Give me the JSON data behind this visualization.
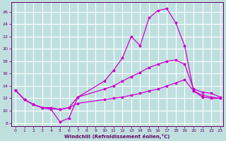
{
  "xlabel": "Windchill (Refroidissement éolien,°C)",
  "bg_color": "#c0e0e0",
  "grid_color": "#ffffff",
  "line_color": "#cc00cc",
  "xlim": [
    -0.5,
    23.3
  ],
  "ylim": [
    7.5,
    27.5
  ],
  "xticks": [
    0,
    1,
    2,
    3,
    4,
    5,
    6,
    7,
    8,
    9,
    10,
    11,
    12,
    13,
    14,
    15,
    16,
    17,
    18,
    19,
    20,
    21,
    22,
    23
  ],
  "yticks": [
    8,
    10,
    12,
    14,
    16,
    18,
    20,
    22,
    24,
    26
  ],
  "curves": [
    {
      "x": [
        0,
        1,
        2,
        3,
        4,
        5,
        6,
        7,
        10,
        11,
        12,
        13,
        14,
        15,
        16,
        17,
        18,
        19,
        20,
        21,
        22,
        23
      ],
      "y": [
        13.3,
        11.8,
        11.0,
        10.5,
        10.2,
        8.2,
        8.8,
        12.2,
        14.8,
        16.5,
        18.5,
        22.0,
        20.5,
        25.0,
        26.2,
        26.5,
        24.2,
        20.5,
        13.2,
        12.5,
        12.2,
        12.0
      ]
    },
    {
      "x": [
        0,
        1,
        2,
        3,
        4,
        5,
        6,
        7,
        10,
        11,
        12,
        13,
        14,
        15,
        16,
        17,
        18,
        19,
        20,
        21,
        22,
        23
      ],
      "y": [
        13.3,
        11.8,
        11.0,
        10.5,
        10.5,
        10.2,
        10.5,
        12.2,
        13.5,
        14.0,
        14.8,
        15.5,
        16.2,
        17.0,
        17.5,
        18.0,
        18.2,
        17.5,
        13.5,
        13.0,
        12.8,
        12.2
      ]
    },
    {
      "x": [
        0,
        1,
        2,
        3,
        5,
        6,
        7,
        10,
        11,
        12,
        13,
        14,
        15,
        16,
        17,
        18,
        19,
        20,
        21,
        22,
        23
      ],
      "y": [
        13.3,
        11.8,
        11.0,
        10.5,
        10.2,
        10.5,
        11.2,
        11.8,
        12.0,
        12.2,
        12.5,
        12.8,
        13.2,
        13.5,
        14.0,
        14.5,
        15.0,
        13.2,
        12.2,
        12.0,
        12.0
      ]
    }
  ]
}
